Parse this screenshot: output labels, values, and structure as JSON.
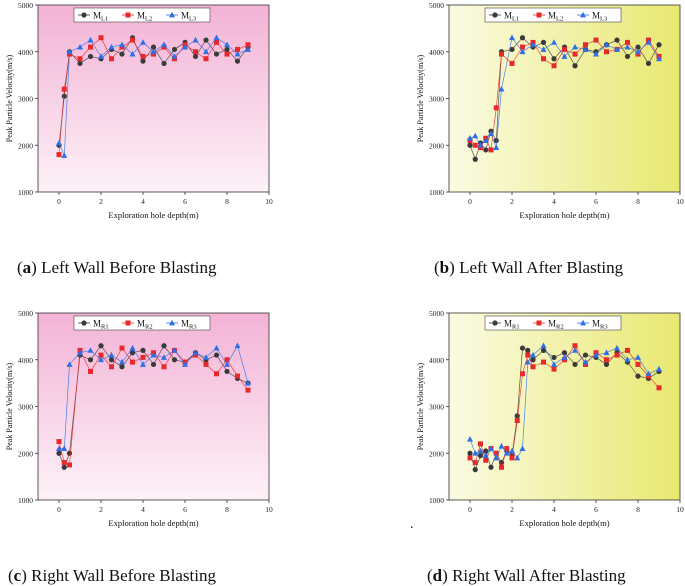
{
  "chart_data": [
    {
      "type": "line",
      "panel": "a",
      "caption_letter": "a",
      "caption_text": " Left Wall Before Blasting",
      "xlabel": "Exploration hole depth(m)",
      "ylabel": "Peak Particle Velocity(m/s)",
      "xlim": [
        -1,
        10
      ],
      "ylim": [
        1000,
        5000
      ],
      "xticks": [
        "0",
        "2",
        "4",
        "6",
        "8",
        "10"
      ],
      "yticks": [
        "1000",
        "2000",
        "3000",
        "4000",
        "5000"
      ],
      "background": "pink",
      "series": [
        {
          "name": "ML1",
          "label_main": "M",
          "label_sub": "L1",
          "marker": "circle",
          "color": "#3a3a3a",
          "x": [
            0,
            0.25,
            0.5,
            1,
            1.5,
            2,
            2.5,
            3,
            3.5,
            4,
            4.5,
            5,
            5.5,
            6,
            6.5,
            7,
            7.5,
            8,
            8.5,
            9
          ],
          "y": [
            2000,
            3050,
            4000,
            3750,
            3900,
            3850,
            4050,
            3950,
            4300,
            3800,
            4100,
            3750,
            4050,
            4200,
            3900,
            4250,
            3950,
            4050,
            3800,
            4100
          ]
        },
        {
          "name": "ML2",
          "label_main": "M",
          "label_sub": "L2",
          "marker": "square",
          "color": "#e8282b",
          "x": [
            0,
            0.25,
            0.5,
            1,
            1.5,
            2,
            2.5,
            3,
            3.5,
            4,
            4.5,
            5,
            5.5,
            6,
            6.5,
            7,
            7.5,
            8,
            8.5,
            9
          ],
          "y": [
            1800,
            3200,
            3950,
            3850,
            4100,
            4300,
            3850,
            4100,
            4250,
            3900,
            3950,
            4100,
            3850,
            4150,
            4000,
            3850,
            4200,
            3950,
            4050,
            4150
          ]
        },
        {
          "name": "ML3",
          "label_main": "M",
          "label_sub": "L3",
          "marker": "triangle",
          "color": "#2e6fe8",
          "x": [
            0,
            0.25,
            0.5,
            1,
            1.5,
            2,
            2.5,
            3,
            3.5,
            4,
            4.5,
            5,
            5.5,
            6,
            6.5,
            7,
            7.5,
            8,
            8.5,
            9
          ],
          "y": [
            2050,
            1780,
            4000,
            4100,
            4250,
            3900,
            4100,
            4150,
            3950,
            4200,
            4000,
            4150,
            3900,
            4100,
            4250,
            4000,
            4300,
            4150,
            3950,
            4050
          ]
        }
      ]
    },
    {
      "type": "line",
      "panel": "b",
      "caption_letter": "b",
      "caption_text": " Left Wall After Blasting",
      "xlabel": "Exploration hole depth(m)",
      "ylabel": "Peak Particle Velocity(m/s)",
      "xlim": [
        -1,
        10
      ],
      "ylim": [
        1000,
        5000
      ],
      "xticks": [
        "0",
        "2",
        "4",
        "6",
        "8",
        "10"
      ],
      "yticks": [
        "1000",
        "2000",
        "3000",
        "4000",
        "5000"
      ],
      "background": "yellow",
      "series": [
        {
          "name": "ML1",
          "label_main": "M",
          "label_sub": "L1",
          "marker": "circle",
          "color": "#3a3a3a",
          "x": [
            0,
            0.25,
            0.5,
            0.75,
            1,
            1.25,
            1.5,
            2,
            2.5,
            3,
            3.5,
            4,
            4.5,
            5,
            5.5,
            6,
            6.5,
            7,
            7.5,
            8,
            8.5,
            9
          ],
          "y": [
            2000,
            1700,
            2050,
            1900,
            2300,
            2100,
            4000,
            4050,
            4300,
            4100,
            4200,
            3850,
            4100,
            3700,
            4050,
            4000,
            4150,
            4250,
            3900,
            4100,
            3750,
            4150
          ]
        },
        {
          "name": "ML2",
          "label_main": "M",
          "label_sub": "L2",
          "marker": "square",
          "color": "#e8282b",
          "x": [
            0,
            0.25,
            0.5,
            0.75,
            1,
            1.25,
            1.5,
            2,
            2.5,
            3,
            3.5,
            4,
            4.5,
            5,
            5.5,
            6,
            6.5,
            7,
            7.5,
            8,
            8.5,
            9
          ],
          "y": [
            2100,
            2000,
            1950,
            2150,
            1900,
            2800,
            3950,
            3750,
            4100,
            4200,
            3850,
            3700,
            4050,
            3950,
            4150,
            4250,
            4000,
            4050,
            4200,
            3950,
            4250,
            3900
          ]
        },
        {
          "name": "ML3",
          "label_main": "M",
          "label_sub": "L3",
          "marker": "triangle",
          "color": "#2e6fe8",
          "x": [
            0,
            0.25,
            0.5,
            0.75,
            1,
            1.25,
            1.5,
            2,
            2.5,
            3,
            3.5,
            4,
            4.5,
            5,
            5.5,
            6,
            6.5,
            7,
            7.5,
            8,
            8.5,
            9
          ],
          "y": [
            2150,
            2200,
            2000,
            2100,
            2250,
            1950,
            3200,
            4300,
            4000,
            4150,
            4050,
            4200,
            3900,
            4100,
            4050,
            3950,
            4150,
            4050,
            4100,
            4000,
            4200,
            3850
          ]
        }
      ]
    },
    {
      "type": "line",
      "panel": "c",
      "caption_letter": "c",
      "caption_text": " Right Wall Before Blasting",
      "xlabel": "Exploration hole depth(m)",
      "ylabel": "Peak Particle Velocity(m/s)",
      "xlim": [
        -1,
        10
      ],
      "ylim": [
        1000,
        5000
      ],
      "xticks": [
        "0",
        "2",
        "4",
        "6",
        "8",
        "10"
      ],
      "yticks": [
        "1000",
        "2000",
        "3000",
        "4000",
        "5000"
      ],
      "background": "pink",
      "series": [
        {
          "name": "MR1",
          "label_main": "M",
          "label_sub": "R1",
          "marker": "circle",
          "color": "#3a3a3a",
          "x": [
            0,
            0.25,
            0.5,
            1,
            1.5,
            2,
            2.5,
            3,
            3.5,
            4,
            4.5,
            5,
            5.5,
            6,
            6.5,
            7,
            7.5,
            8,
            8.5,
            9
          ],
          "y": [
            2000,
            1700,
            2000,
            4100,
            4000,
            4300,
            4000,
            3850,
            4150,
            4200,
            3900,
            4300,
            4000,
            3950,
            4150,
            4000,
            4100,
            3750,
            3600,
            3500
          ]
        },
        {
          "name": "MR2",
          "label_main": "M",
          "label_sub": "R2",
          "marker": "square",
          "color": "#e8282b",
          "x": [
            0,
            0.25,
            0.5,
            1,
            1.5,
            2,
            2.5,
            3,
            3.5,
            4,
            4.5,
            5,
            5.5,
            6,
            6.5,
            7,
            7.5,
            8,
            8.5,
            9
          ],
          "y": [
            2250,
            1800,
            1750,
            4200,
            3750,
            4100,
            3850,
            4250,
            3950,
            4050,
            4150,
            3850,
            4200,
            3950,
            4100,
            3900,
            3700,
            4000,
            3650,
            3350
          ]
        },
        {
          "name": "MR3",
          "label_main": "M",
          "label_sub": "R3",
          "marker": "triangle",
          "color": "#2e6fe8",
          "x": [
            0,
            0.25,
            0.5,
            1,
            1.5,
            2,
            2.5,
            3,
            3.5,
            4,
            4.5,
            5,
            5.5,
            6,
            6.5,
            7,
            7.5,
            8,
            8.5,
            9
          ],
          "y": [
            2100,
            2100,
            3900,
            4150,
            4200,
            4000,
            4100,
            3950,
            4250,
            3900,
            4100,
            4050,
            4200,
            3900,
            4150,
            4050,
            4250,
            3900,
            4300,
            3500
          ]
        }
      ]
    },
    {
      "type": "line",
      "panel": "d",
      "caption_letter": "d",
      "caption_text": " Right Wall After Blasting",
      "xlabel": "Exploration hole depth(m)",
      "ylabel": "Peak Particle Velocity(m/s)",
      "xlim": [
        -1,
        10
      ],
      "ylim": [
        1000,
        5000
      ],
      "xticks": [
        "0",
        "2",
        "4",
        "6",
        "8",
        "10"
      ],
      "yticks": [
        "1000",
        "2000",
        "3000",
        "4000",
        "5000"
      ],
      "background": "yellow",
      "series": [
        {
          "name": "MR1",
          "label_main": "M",
          "label_sub": "R1",
          "marker": "circle",
          "color": "#3a3a3a",
          "x": [
            0,
            0.25,
            0.5,
            0.75,
            1,
            1.25,
            1.5,
            1.75,
            2,
            2.25,
            2.5,
            2.75,
            3,
            3.5,
            4,
            4.5,
            5,
            5.5,
            6,
            6.5,
            7,
            7.5,
            8,
            8.5,
            9
          ],
          "y": [
            2000,
            1650,
            1950,
            2050,
            1700,
            2000,
            1800,
            2050,
            1950,
            2800,
            4250,
            4200,
            4000,
            4200,
            4050,
            4150,
            3900,
            4100,
            4050,
            3900,
            4150,
            3950,
            3650,
            3600,
            3750
          ]
        },
        {
          "name": "MR2",
          "label_main": "M",
          "label_sub": "R2",
          "marker": "square",
          "color": "#e8282b",
          "x": [
            0,
            0.25,
            0.5,
            0.75,
            1,
            1.25,
            1.5,
            1.75,
            2,
            2.25,
            2.5,
            2.75,
            3,
            3.5,
            4,
            4.5,
            5,
            5.5,
            6,
            6.5,
            7,
            7.5,
            8,
            8.5,
            9
          ],
          "y": [
            1900,
            1800,
            2200,
            1850,
            2100,
            2000,
            1700,
            2100,
            1900,
            2700,
            3700,
            4100,
            3850,
            3950,
            3800,
            4000,
            4300,
            3900,
            4150,
            4000,
            4100,
            4200,
            3900,
            3650,
            3400
          ]
        },
        {
          "name": "MR3",
          "label_main": "M",
          "label_sub": "R3",
          "marker": "triangle",
          "color": "#2e6fe8",
          "x": [
            0,
            0.25,
            0.5,
            0.75,
            1,
            1.25,
            1.5,
            1.75,
            2,
            2.25,
            2.5,
            2.75,
            3,
            3.5,
            4,
            4.5,
            5,
            5.5,
            6,
            6.5,
            7,
            7.5,
            8,
            8.5,
            9
          ],
          "y": [
            2300,
            2000,
            2050,
            1950,
            2100,
            1900,
            2150,
            2000,
            2050,
            1900,
            2100,
            3950,
            4100,
            4300,
            3900,
            4050,
            4200,
            3950,
            4100,
            4150,
            4250,
            4000,
            4050,
            3700,
            3800
          ]
        }
      ]
    }
  ],
  "stray_mark": "."
}
